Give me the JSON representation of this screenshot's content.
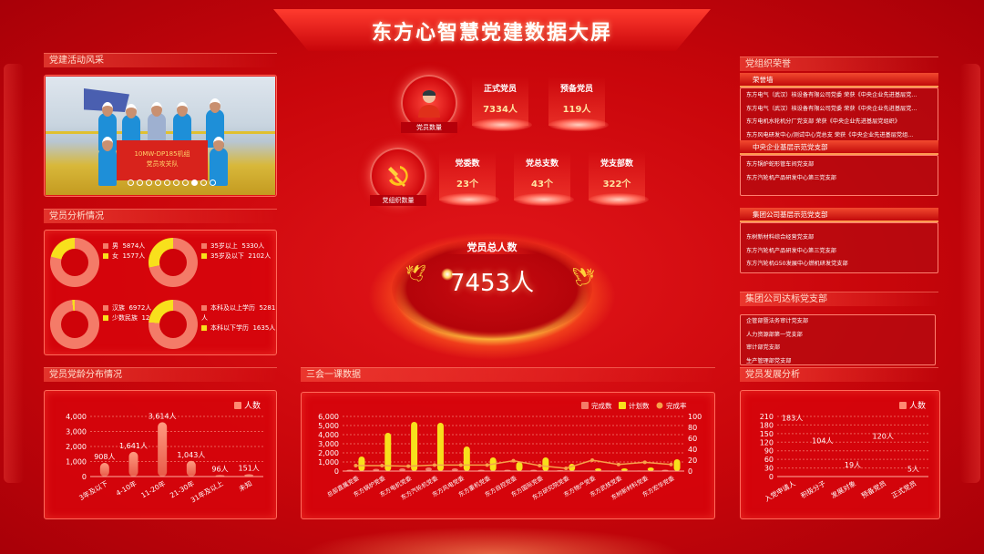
{
  "header": {
    "title": "东方心智慧党建数据大屏"
  },
  "activity": {
    "title": "党建活动风采",
    "banner_line1": "10MW-DP185机组",
    "banner_line2": "党员攻关队",
    "carousel_count": 10,
    "carousel_active": 8
  },
  "analysis": {
    "title": "党员分析情况",
    "donuts": [
      {
        "items": [
          {
            "label": "男",
            "value": "5874人"
          },
          {
            "label": "女",
            "value": "1577人"
          }
        ],
        "values": [
          5874,
          1577
        ]
      },
      {
        "items": [
          {
            "label": "35岁以上",
            "value": "5330人"
          },
          {
            "label": "35岁及以下",
            "value": "2102人"
          }
        ],
        "values": [
          5330,
          2102
        ]
      },
      {
        "items": [
          {
            "label": "汉族",
            "value": "6972人"
          },
          {
            "label": "少数民族",
            "value": "120人"
          }
        ],
        "values": [
          6972,
          120
        ]
      },
      {
        "items": [
          {
            "label": "本科及以上学历",
            "value": "5281人"
          },
          {
            "label": "本科以下学历",
            "value": "1635人"
          }
        ],
        "values": [
          5281,
          1635
        ]
      }
    ]
  },
  "members": {
    "icon_label": "党员数量",
    "stats": [
      {
        "label": "正式党员",
        "value": "7334人"
      },
      {
        "label": "预备党员",
        "value": "119人"
      }
    ]
  },
  "orgs": {
    "icon_label": "党组织数量",
    "stats": [
      {
        "label": "党委数",
        "value": "23个"
      },
      {
        "label": "党总支数",
        "value": "43个"
      },
      {
        "label": "党支部数",
        "value": "322个"
      }
    ]
  },
  "total": {
    "label": "党员总人数",
    "value": "7453人"
  },
  "honor": {
    "title": "党组织荣誉",
    "groups": [
      {
        "head": "荣誉墙",
        "items": [
          "东方电气（武汉）核设备有限公司党委 荣获《中央企业先进基层党...",
          "东方电气（武汉）核设备有限公司党委 荣获《中央企业先进基层党...",
          "东方电机水轮机分厂党支部 荣获《中央企业先进基层党组织》",
          "东方风电研发中心/测试中心党总支 荣获《中央企业先进基层党组..."
        ]
      },
      {
        "head": "中央企业基层示范党支部",
        "items": [
          "东方锅炉蛇形管车间党支部",
          "东方汽轮机产品研发中心第三党支部"
        ]
      },
      {
        "head": "集团公司基层示范党支部",
        "items": [
          "东树新材料综合经营党支部",
          "东方汽轮机产品研发中心第三党支部",
          "东方汽轮机G50发展中心燃机研发党支部"
        ]
      }
    ]
  },
  "standard": {
    "title": "集团公司达标党支部",
    "items": [
      "企管部暨法务审计党支部",
      "人力资源部第一党支部",
      "审计部党支部",
      "生产管理部党支部"
    ]
  },
  "colors": {
    "salmon": "#f47b68",
    "yellow": "#f8e01c",
    "line": "#f7a04a"
  },
  "chart_data": [
    {
      "type": "bar",
      "title": "党员党龄分布情况",
      "legend": [
        "人数"
      ],
      "categories": [
        "3年及以下",
        "4-10年",
        "11-20年",
        "21-30年",
        "31年及以上",
        "未知"
      ],
      "series": [
        {
          "name": "人数",
          "values": [
            908,
            1641,
            3614,
            1043,
            96,
            151
          ]
        }
      ],
      "data_labels": [
        "908人",
        "1,641人",
        "3,614人",
        "1,043人",
        "96人",
        "151人"
      ],
      "ylim": [
        0,
        4000
      ],
      "yticks": [
        "0",
        "1,000",
        "2,000",
        "3,000",
        "4,000"
      ],
      "grid": true,
      "legend_position": "top-right"
    },
    {
      "type": "bar",
      "title": "三会一课数据",
      "legend": [
        "完成数",
        "计划数",
        "完成率"
      ],
      "categories": [
        "总部直属党委",
        "东方锅炉党委",
        "东方电机党委",
        "东方汽轮机党委",
        "东方风电党委",
        "东方重机党委",
        "东方自控党委",
        "东方国际党委",
        "东方研究院党委",
        "东方物产党委",
        "东方武核党委",
        "东树新材料党委",
        "东方宏华党委"
      ],
      "series": [
        {
          "name": "完成数",
          "values": [
            150,
            250,
            300,
            400,
            300,
            150,
            150,
            150,
            100,
            50,
            30,
            60,
            150
          ]
        },
        {
          "name": "计划数",
          "values": [
            1600,
            4200,
            5400,
            5300,
            2700,
            1500,
            1000,
            1500,
            800,
            300,
            300,
            400,
            1300
          ]
        },
        {
          "name": "完成率",
          "type": "line",
          "axis": "right",
          "values": [
            10,
            10,
            9,
            11,
            11,
            11,
            19,
            10,
            5,
            20,
            12,
            16,
            12
          ]
        }
      ],
      "ylim": [
        0,
        6000
      ],
      "yticks": [
        "0",
        "1,000",
        "2,000",
        "3,000",
        "4,000",
        "5,000",
        "6,000"
      ],
      "y2lim": [
        0,
        100
      ],
      "y2ticks": [
        "0",
        "20",
        "40",
        "60",
        "80",
        "100"
      ],
      "grid": true,
      "legend_position": "top-right"
    },
    {
      "type": "bar",
      "title": "党员发展分析",
      "legend": [
        "人数"
      ],
      "categories": [
        "入党申请人",
        "积极分子",
        "发展对象",
        "预备党员",
        "正式党员"
      ],
      "series": [
        {
          "name": "人数",
          "values": [
            183,
            104,
            19,
            120,
            5
          ]
        }
      ],
      "data_labels": [
        "183人",
        "104人",
        "19人",
        "120人",
        "5人"
      ],
      "ylim": [
        0,
        210
      ],
      "yticks": [
        "0",
        "30",
        "60",
        "90",
        "120",
        "150",
        "180",
        "210"
      ],
      "grid": true,
      "legend_position": "top-right"
    }
  ]
}
